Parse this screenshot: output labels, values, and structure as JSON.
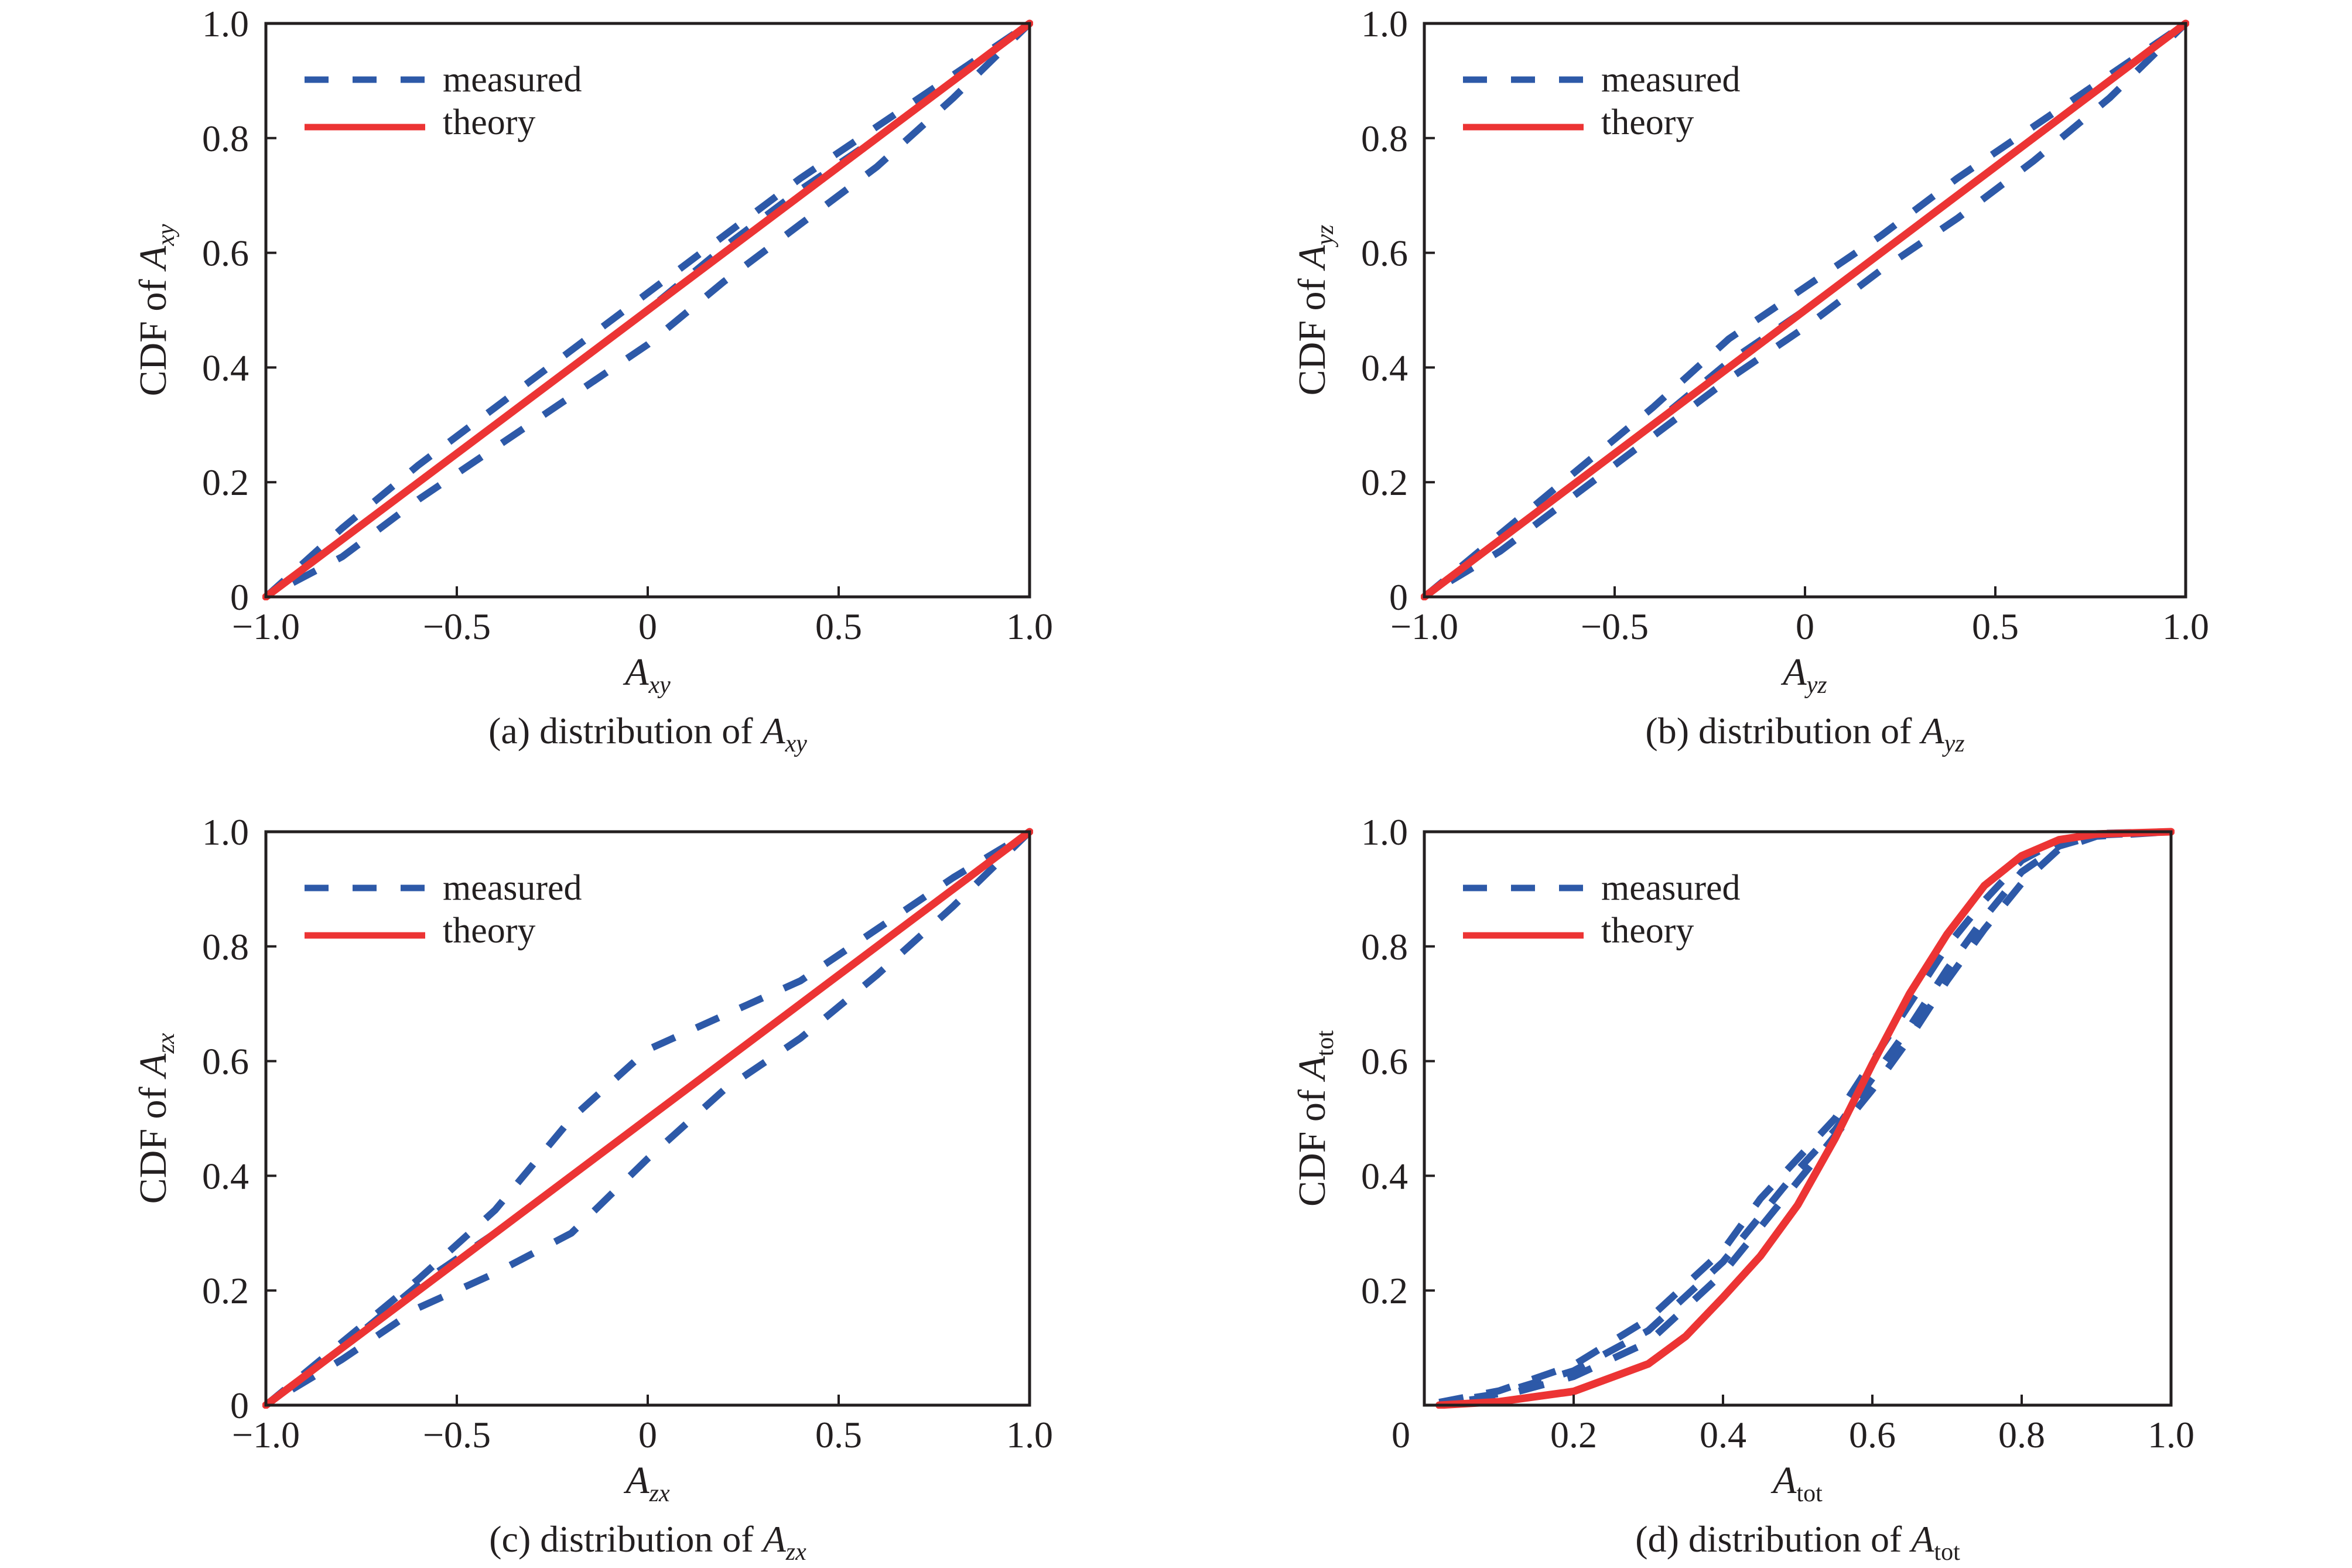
{
  "colors": {
    "measured": "#2d59a8",
    "theory": "#ec3434",
    "axis": "#231f20"
  },
  "legend": {
    "measured_label": "measured",
    "theory_label": "theory"
  },
  "chart_data": [
    {
      "id": "a",
      "type": "line",
      "caption": {
        "prefix": "(a) distribution of ",
        "symbol": "A",
        "sub": "xy"
      },
      "xlabel": {
        "symbol": "A",
        "sub": "xy"
      },
      "ylabel": {
        "prefix": "CDF of ",
        "symbol": "A",
        "sub": "xy"
      },
      "xlim": [
        -1.0,
        1.0
      ],
      "ylim": [
        0,
        1.0
      ],
      "xticks": [
        -1.0,
        -0.5,
        0,
        0.5,
        1.0
      ],
      "xtick_labels": [
        "−1.0",
        "−0.5",
        "0",
        "0.5",
        "1.0"
      ],
      "yticks": [
        0,
        0.2,
        0.4,
        0.6,
        0.8,
        1.0
      ],
      "ytick_labels": [
        "0",
        "0.2",
        "0.4",
        "0.6",
        "0.8",
        "1.0"
      ],
      "legend_position": "top-left",
      "grid": false,
      "x": [
        -1.0,
        -0.8,
        -0.6,
        -0.4,
        -0.2,
        0,
        0.2,
        0.4,
        0.6,
        0.8,
        1.0
      ],
      "series": [
        {
          "name": "measured",
          "style": "dashed",
          "values": [
            0,
            0.12,
            0.23,
            0.33,
            0.43,
            0.53,
            0.63,
            0.73,
            0.82,
            0.91,
            1.0
          ]
        },
        {
          "name": "measured",
          "style": "dashed",
          "values": [
            0,
            0.1,
            0.2,
            0.3,
            0.4,
            0.5,
            0.61,
            0.71,
            0.8,
            0.9,
            1.0
          ]
        },
        {
          "name": "measured",
          "style": "dashed",
          "values": [
            0,
            0.07,
            0.17,
            0.26,
            0.35,
            0.44,
            0.55,
            0.65,
            0.75,
            0.87,
            1.0
          ]
        },
        {
          "name": "theory",
          "style": "solid",
          "values": [
            0,
            0.1,
            0.2,
            0.3,
            0.4,
            0.5,
            0.6,
            0.7,
            0.8,
            0.9,
            1.0
          ]
        }
      ]
    },
    {
      "id": "b",
      "type": "line",
      "caption": {
        "prefix": "(b) distribution of ",
        "symbol": "A",
        "sub": "yz"
      },
      "xlabel": {
        "symbol": "A",
        "sub": "yz"
      },
      "ylabel": {
        "prefix": "CDF of ",
        "symbol": "A",
        "sub": "yz"
      },
      "xlim": [
        -1.0,
        1.0
      ],
      "ylim": [
        0,
        1.0
      ],
      "xticks": [
        -1.0,
        -0.5,
        0,
        0.5,
        1.0
      ],
      "xtick_labels": [
        "−1.0",
        "−0.5",
        "0",
        "0.5",
        "1.0"
      ],
      "yticks": [
        0,
        0.2,
        0.4,
        0.6,
        0.8,
        1.0
      ],
      "ytick_labels": [
        "0",
        "0.2",
        "0.4",
        "0.6",
        "0.8",
        "1.0"
      ],
      "legend_position": "top-left",
      "grid": false,
      "x": [
        -1.0,
        -0.8,
        -0.6,
        -0.4,
        -0.2,
        0,
        0.2,
        0.4,
        0.6,
        0.8,
        1.0
      ],
      "series": [
        {
          "name": "measured",
          "style": "dashed",
          "values": [
            0,
            0.11,
            0.22,
            0.33,
            0.45,
            0.54,
            0.63,
            0.73,
            0.82,
            0.91,
            1.0
          ]
        },
        {
          "name": "measured",
          "style": "dashed",
          "values": [
            0,
            0.1,
            0.2,
            0.3,
            0.41,
            0.5,
            0.6,
            0.7,
            0.8,
            0.9,
            1.0
          ]
        },
        {
          "name": "measured",
          "style": "dashed",
          "values": [
            0,
            0.08,
            0.18,
            0.28,
            0.38,
            0.47,
            0.57,
            0.66,
            0.76,
            0.87,
            1.0
          ]
        },
        {
          "name": "theory",
          "style": "solid",
          "values": [
            0,
            0.1,
            0.2,
            0.3,
            0.4,
            0.5,
            0.6,
            0.7,
            0.8,
            0.9,
            1.0
          ]
        }
      ]
    },
    {
      "id": "c",
      "type": "line",
      "caption": {
        "prefix": "(c) distribution of ",
        "symbol": "A",
        "sub": "zx"
      },
      "xlabel": {
        "symbol": "A",
        "sub": "zx"
      },
      "ylabel": {
        "prefix": "CDF of ",
        "symbol": "A",
        "sub": "zx"
      },
      "xlim": [
        -1.0,
        1.0
      ],
      "ylim": [
        0,
        1.0
      ],
      "xticks": [
        -1.0,
        -0.5,
        0,
        0.5,
        1.0
      ],
      "xtick_labels": [
        "−1.0",
        "−0.5",
        "0",
        "0.5",
        "1.0"
      ],
      "yticks": [
        0,
        0.2,
        0.4,
        0.6,
        0.8,
        1.0
      ],
      "ytick_labels": [
        "0",
        "0.2",
        "0.4",
        "0.6",
        "0.8",
        "1.0"
      ],
      "legend_position": "top-left",
      "grid": false,
      "x": [
        -1.0,
        -0.8,
        -0.6,
        -0.4,
        -0.2,
        0,
        0.2,
        0.4,
        0.6,
        0.8,
        1.0
      ],
      "series": [
        {
          "name": "measured",
          "style": "dashed",
          "values": [
            0,
            0.11,
            0.22,
            0.34,
            0.5,
            0.62,
            0.68,
            0.74,
            0.83,
            0.92,
            1.0
          ]
        },
        {
          "name": "measured",
          "style": "dashed",
          "values": [
            0,
            0.1,
            0.21,
            0.3,
            0.4,
            0.5,
            0.6,
            0.7,
            0.8,
            0.9,
            1.0
          ]
        },
        {
          "name": "measured",
          "style": "dashed",
          "values": [
            0,
            0.08,
            0.17,
            0.23,
            0.3,
            0.43,
            0.55,
            0.64,
            0.75,
            0.87,
            1.0
          ]
        },
        {
          "name": "theory",
          "style": "solid",
          "values": [
            0,
            0.1,
            0.2,
            0.3,
            0.4,
            0.5,
            0.6,
            0.7,
            0.8,
            0.9,
            1.0
          ]
        }
      ]
    },
    {
      "id": "d",
      "type": "line",
      "caption": {
        "prefix": "(d) distribution of ",
        "symbol": "A",
        "sub": "tot"
      },
      "xlabel": {
        "symbol": "A",
        "sub": "tot"
      },
      "ylabel": {
        "prefix": "CDF of ",
        "symbol": "A",
        "sub": "tot"
      },
      "xlim": [
        0,
        1.0
      ],
      "ylim": [
        0,
        1.0
      ],
      "xticks": [
        0,
        0.2,
        0.4,
        0.6,
        0.8,
        1.0
      ],
      "xtick_labels": [
        "0",
        "0.2",
        "0.4",
        "0.6",
        "0.8",
        "1.0"
      ],
      "yticks": [
        0.2,
        0.4,
        0.6,
        0.8,
        1.0
      ],
      "ytick_labels": [
        "0.2",
        "0.4",
        "0.6",
        "0.8",
        "1.0"
      ],
      "legend_position": "top-left",
      "grid": false,
      "x": [
        0.02,
        0.1,
        0.2,
        0.3,
        0.35,
        0.4,
        0.45,
        0.5,
        0.55,
        0.6,
        0.65,
        0.7,
        0.75,
        0.8,
        0.85,
        0.9,
        1.0
      ],
      "series": [
        {
          "name": "measured",
          "style": "dashed",
          "values": [
            0.005,
            0.025,
            0.07,
            0.15,
            0.21,
            0.27,
            0.36,
            0.43,
            0.5,
            0.6,
            0.7,
            0.8,
            0.88,
            0.95,
            0.985,
            0.997,
            1.0
          ]
        },
        {
          "name": "measured",
          "style": "dashed",
          "values": [
            0.004,
            0.02,
            0.06,
            0.13,
            0.19,
            0.25,
            0.33,
            0.41,
            0.48,
            0.57,
            0.66,
            0.76,
            0.85,
            0.93,
            0.975,
            0.994,
            1.0
          ]
        },
        {
          "name": "measured",
          "style": "dashed",
          "values": [
            0.003,
            0.015,
            0.05,
            0.11,
            0.17,
            0.23,
            0.31,
            0.39,
            0.47,
            0.55,
            0.64,
            0.74,
            0.83,
            0.91,
            0.97,
            0.992,
            1.0
          ]
        },
        {
          "name": "theory",
          "style": "solid",
          "values": [
            0,
            0.006,
            0.024,
            0.072,
            0.12,
            0.188,
            0.26,
            0.349,
            0.465,
            0.595,
            0.718,
            0.821,
            0.906,
            0.958,
            0.986,
            0.996,
            1.0
          ]
        }
      ]
    }
  ]
}
